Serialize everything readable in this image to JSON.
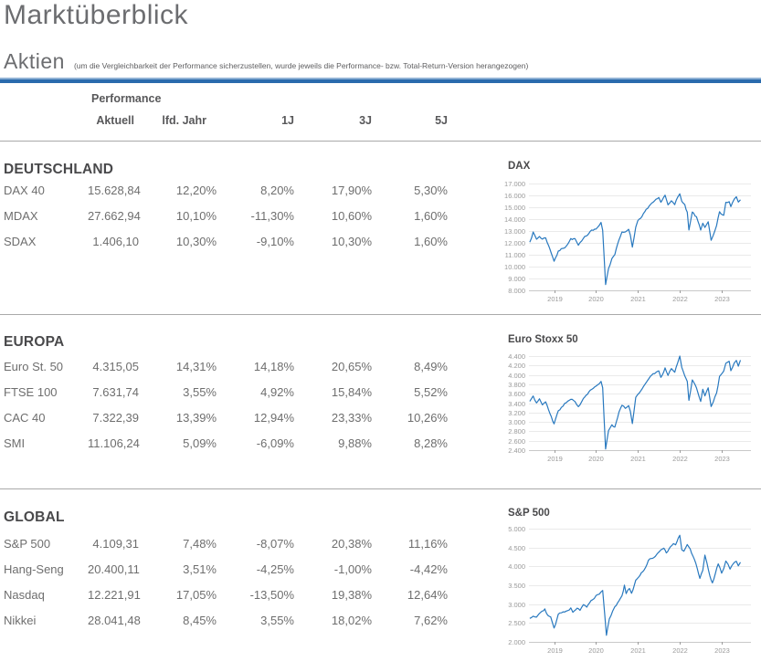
{
  "page": {
    "title": "Marktüberblick",
    "section_label": "Aktien",
    "section_note": "(um die Vergleichbarkeit der Performance sicherzustellen, wurde jeweils die Performance- bzw. Total-Return-Version herangezogen)",
    "colors": {
      "accent_rule": "#2a6bad",
      "chart_line": "#2979bf",
      "grid": "#eaeaea",
      "axis": "#c9c9c9"
    }
  },
  "table": {
    "group_header": "Performance",
    "columns": [
      "Aktuell",
      "lfd. Jahr",
      "1J",
      "3J",
      "5J"
    ],
    "sections": [
      {
        "title": "DEUTSCHLAND",
        "rows": [
          {
            "name": "DAX 40",
            "values": [
              "15.628,84",
              "12,20%",
              "8,20%",
              "17,90%",
              "5,30%"
            ]
          },
          {
            "name": "MDAX",
            "values": [
              "27.662,94",
              "10,10%",
              "-11,30%",
              "10,60%",
              "1,60%"
            ]
          },
          {
            "name": "SDAX",
            "values": [
              "1.406,10",
              "10,30%",
              "-9,10%",
              "10,30%",
              "1,60%"
            ]
          }
        ]
      },
      {
        "title": "EUROPA",
        "rows": [
          {
            "name": "Euro St. 50",
            "values": [
              "4.315,05",
              "14,31%",
              "14,18%",
              "20,65%",
              "8,49%"
            ]
          },
          {
            "name": "FTSE 100",
            "values": [
              "7.631,74",
              "3,55%",
              "4,92%",
              "15,84%",
              "5,52%"
            ]
          },
          {
            "name": "CAC 40",
            "values": [
              "7.322,39",
              "13,39%",
              "12,94%",
              "23,33%",
              "10,26%"
            ]
          },
          {
            "name": "SMI",
            "values": [
              "11.106,24",
              "5,09%",
              "-6,09%",
              "9,88%",
              "8,28%"
            ]
          }
        ]
      },
      {
        "title": "GLOBAL",
        "rows": [
          {
            "name": "S&P 500",
            "values": [
              "4.109,31",
              "7,48%",
              "-8,07%",
              "20,38%",
              "11,16%"
            ]
          },
          {
            "name": "Hang-Seng",
            "values": [
              "20.400,11",
              "3,51%",
              "-4,25%",
              "-1,00%",
              "-4,42%"
            ]
          },
          {
            "name": "Nasdaq",
            "values": [
              "12.221,91",
              "17,05%",
              "-13,50%",
              "19,38%",
              "12,64%"
            ]
          },
          {
            "name": "Nikkei",
            "values": [
              "28.041,48",
              "8,45%",
              "3,55%",
              "18,02%",
              "7,62%"
            ]
          }
        ]
      }
    ]
  },
  "chart_data": [
    {
      "type": "line",
      "title": "DAX",
      "color": "#2979bf",
      "xlim": [
        2018.4,
        2023.7
      ],
      "ylim": [
        8000,
        17000
      ],
      "x_ticks": [
        2019,
        2020,
        2021,
        2022,
        2023
      ],
      "y_ticks": [
        8000,
        9000,
        10000,
        11000,
        12000,
        13000,
        14000,
        15000,
        16000,
        17000
      ],
      "points": [
        [
          2018.42,
          12150
        ],
        [
          2018.5,
          12950
        ],
        [
          2018.58,
          12300
        ],
        [
          2018.65,
          12550
        ],
        [
          2018.72,
          12350
        ],
        [
          2018.8,
          12450
        ],
        [
          2018.9,
          11500
        ],
        [
          2019.0,
          10550
        ],
        [
          2019.1,
          11300
        ],
        [
          2019.25,
          11650
        ],
        [
          2019.33,
          12050
        ],
        [
          2019.4,
          12400
        ],
        [
          2019.5,
          12350
        ],
        [
          2019.58,
          11750
        ],
        [
          2019.7,
          12200
        ],
        [
          2019.8,
          12650
        ],
        [
          2019.9,
          13200
        ],
        [
          2020.0,
          13250
        ],
        [
          2020.12,
          13700
        ],
        [
          2020.16,
          13000
        ],
        [
          2020.23,
          8450
        ],
        [
          2020.3,
          9900
        ],
        [
          2020.38,
          10700
        ],
        [
          2020.45,
          11100
        ],
        [
          2020.55,
          12400
        ],
        [
          2020.62,
          12900
        ],
        [
          2020.7,
          12850
        ],
        [
          2020.78,
          13000
        ],
        [
          2020.82,
          12600
        ],
        [
          2020.87,
          11600
        ],
        [
          2020.95,
          13200
        ],
        [
          2021.0,
          13700
        ],
        [
          2021.1,
          14000
        ],
        [
          2021.2,
          14600
        ],
        [
          2021.3,
          15200
        ],
        [
          2021.4,
          15450
        ],
        [
          2021.5,
          15650
        ],
        [
          2021.55,
          15300
        ],
        [
          2021.65,
          15900
        ],
        [
          2021.72,
          15200
        ],
        [
          2021.8,
          15700
        ],
        [
          2021.88,
          15200
        ],
        [
          2021.95,
          15900
        ],
        [
          2022.0,
          16150
        ],
        [
          2022.05,
          15500
        ],
        [
          2022.12,
          15100
        ],
        [
          2022.18,
          14450
        ],
        [
          2022.22,
          12950
        ],
        [
          2022.3,
          14450
        ],
        [
          2022.4,
          14050
        ],
        [
          2022.5,
          13050
        ],
        [
          2022.55,
          13650
        ],
        [
          2022.6,
          13350
        ],
        [
          2022.68,
          13700
        ],
        [
          2022.75,
          12100
        ],
        [
          2022.8,
          12450
        ],
        [
          2022.88,
          13300
        ],
        [
          2022.95,
          14450
        ],
        [
          2023.05,
          14200
        ],
        [
          2023.1,
          15250
        ],
        [
          2023.18,
          15400
        ],
        [
          2023.22,
          15000
        ],
        [
          2023.3,
          15700
        ],
        [
          2023.35,
          15950
        ],
        [
          2023.4,
          15500
        ],
        [
          2023.45,
          15630
        ]
      ]
    },
    {
      "type": "line",
      "title": "Euro Stoxx 50",
      "color": "#2979bf",
      "xlim": [
        2018.4,
        2023.7
      ],
      "ylim": [
        2400,
        4400
      ],
      "x_ticks": [
        2019,
        2020,
        2021,
        2022,
        2023
      ],
      "y_ticks": [
        2400,
        2600,
        2800,
        3000,
        3200,
        3400,
        3600,
        3800,
        4000,
        4200,
        4400
      ],
      "points": [
        [
          2018.42,
          3440
        ],
        [
          2018.5,
          3550
        ],
        [
          2018.58,
          3400
        ],
        [
          2018.65,
          3480
        ],
        [
          2018.72,
          3380
        ],
        [
          2018.8,
          3440
        ],
        [
          2018.9,
          3200
        ],
        [
          2019.0,
          2960
        ],
        [
          2019.1,
          3220
        ],
        [
          2019.25,
          3380
        ],
        [
          2019.33,
          3440
        ],
        [
          2019.4,
          3500
        ],
        [
          2019.5,
          3450
        ],
        [
          2019.58,
          3320
        ],
        [
          2019.7,
          3480
        ],
        [
          2019.8,
          3570
        ],
        [
          2019.9,
          3690
        ],
        [
          2020.0,
          3750
        ],
        [
          2020.12,
          3850
        ],
        [
          2020.16,
          3700
        ],
        [
          2020.23,
          2400
        ],
        [
          2020.3,
          2800
        ],
        [
          2020.38,
          2950
        ],
        [
          2020.45,
          2900
        ],
        [
          2020.55,
          3230
        ],
        [
          2020.62,
          3380
        ],
        [
          2020.7,
          3300
        ],
        [
          2020.78,
          3330
        ],
        [
          2020.82,
          3200
        ],
        [
          2020.87,
          2950
        ],
        [
          2020.95,
          3480
        ],
        [
          2021.0,
          3550
        ],
        [
          2021.1,
          3650
        ],
        [
          2021.2,
          3850
        ],
        [
          2021.3,
          3950
        ],
        [
          2021.4,
          4000
        ],
        [
          2021.5,
          4070
        ],
        [
          2021.55,
          3950
        ],
        [
          2021.65,
          4150
        ],
        [
          2021.72,
          4000
        ],
        [
          2021.8,
          4150
        ],
        [
          2021.88,
          4050
        ],
        [
          2021.95,
          4250
        ],
        [
          2022.0,
          4390
        ],
        [
          2022.05,
          4150
        ],
        [
          2022.12,
          4000
        ],
        [
          2022.18,
          3900
        ],
        [
          2022.22,
          3500
        ],
        [
          2022.3,
          3920
        ],
        [
          2022.4,
          3750
        ],
        [
          2022.5,
          3450
        ],
        [
          2022.55,
          3700
        ],
        [
          2022.6,
          3550
        ],
        [
          2022.68,
          3700
        ],
        [
          2022.75,
          3300
        ],
        [
          2022.8,
          3400
        ],
        [
          2022.88,
          3600
        ],
        [
          2022.95,
          3950
        ],
        [
          2023.05,
          4100
        ],
        [
          2023.1,
          4250
        ],
        [
          2023.18,
          4300
        ],
        [
          2023.22,
          4100
        ],
        [
          2023.3,
          4250
        ],
        [
          2023.35,
          4320
        ],
        [
          2023.4,
          4200
        ],
        [
          2023.45,
          4315
        ]
      ]
    },
    {
      "type": "line",
      "title": "S&P 500",
      "color": "#2979bf",
      "xlim": [
        2018.4,
        2023.7
      ],
      "ylim": [
        2000,
        5000
      ],
      "x_ticks": [
        2019,
        2020,
        2021,
        2022,
        2023
      ],
      "y_ticks": [
        2000,
        2500,
        3000,
        3500,
        4000,
        4500,
        5000
      ],
      "points": [
        [
          2018.42,
          2640
        ],
        [
          2018.5,
          2720
        ],
        [
          2018.58,
          2700
        ],
        [
          2018.65,
          2800
        ],
        [
          2018.72,
          2870
        ],
        [
          2018.78,
          2920
        ],
        [
          2018.85,
          2750
        ],
        [
          2018.92,
          2650
        ],
        [
          2019.0,
          2350
        ],
        [
          2019.1,
          2700
        ],
        [
          2019.25,
          2800
        ],
        [
          2019.33,
          2870
        ],
        [
          2019.4,
          2940
        ],
        [
          2019.45,
          2830
        ],
        [
          2019.55,
          2950
        ],
        [
          2019.62,
          2880
        ],
        [
          2019.7,
          2980
        ],
        [
          2019.78,
          2920
        ],
        [
          2019.88,
          3060
        ],
        [
          2020.0,
          3230
        ],
        [
          2020.12,
          3340
        ],
        [
          2020.16,
          3380
        ],
        [
          2020.25,
          2220
        ],
        [
          2020.32,
          2650
        ],
        [
          2020.4,
          2850
        ],
        [
          2020.45,
          2950
        ],
        [
          2020.55,
          3100
        ],
        [
          2020.62,
          3230
        ],
        [
          2020.68,
          3500
        ],
        [
          2020.72,
          3300
        ],
        [
          2020.8,
          3420
        ],
        [
          2020.85,
          3270
        ],
        [
          2020.95,
          3600
        ],
        [
          2021.05,
          3750
        ],
        [
          2021.15,
          3900
        ],
        [
          2021.25,
          4150
        ],
        [
          2021.35,
          4200
        ],
        [
          2021.45,
          4350
        ],
        [
          2021.55,
          4450
        ],
        [
          2021.62,
          4520
        ],
        [
          2021.68,
          4350
        ],
        [
          2021.78,
          4530
        ],
        [
          2021.85,
          4600
        ],
        [
          2021.9,
          4550
        ],
        [
          2022.0,
          4790
        ],
        [
          2022.05,
          4400
        ],
        [
          2022.1,
          4350
        ],
        [
          2022.18,
          4580
        ],
        [
          2022.25,
          4450
        ],
        [
          2022.35,
          4150
        ],
        [
          2022.42,
          3900
        ],
        [
          2022.48,
          3670
        ],
        [
          2022.55,
          3900
        ],
        [
          2022.6,
          4300
        ],
        [
          2022.65,
          4100
        ],
        [
          2022.72,
          3750
        ],
        [
          2022.78,
          3580
        ],
        [
          2022.85,
          3800
        ],
        [
          2022.92,
          4070
        ],
        [
          2023.0,
          3850
        ],
        [
          2023.05,
          3960
        ],
        [
          2023.1,
          4150
        ],
        [
          2023.15,
          4080
        ],
        [
          2023.2,
          3920
        ],
        [
          2023.28,
          4100
        ],
        [
          2023.35,
          4160
        ],
        [
          2023.4,
          4050
        ],
        [
          2023.45,
          4110
        ]
      ]
    }
  ]
}
